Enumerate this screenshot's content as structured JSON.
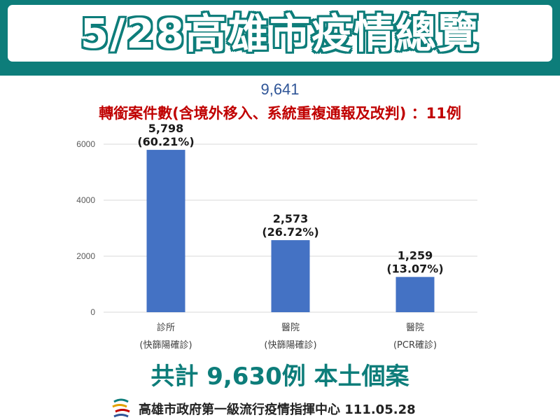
{
  "header": {
    "title": "5/28高雄市疫情總覽",
    "bg_color": "#0d7d7a"
  },
  "total_reference": "9,641",
  "transfer_note": "轉銜案件數(含境外移入、系統重複通報及改判) ：11例",
  "chart_data": {
    "type": "bar",
    "categories": [
      [
        "診所",
        "(快篩陽確診)"
      ],
      [
        "醫院",
        "(快篩陽確診)"
      ],
      [
        "醫院",
        "(PCR確診)"
      ]
    ],
    "values": [
      5798,
      2573,
      1259
    ],
    "data_labels": [
      [
        "5,798",
        "(60.21%)"
      ],
      [
        "2,573",
        "(26.72%)"
      ],
      [
        "1,259",
        "(13.07%)"
      ]
    ],
    "y_ticks": [
      0,
      2000,
      4000,
      6000
    ],
    "ylim": [
      0,
      6400
    ],
    "grid": true,
    "bar_color": "#4472c4",
    "title": "",
    "xlabel": "",
    "ylabel": ""
  },
  "summary": "共計 9,630例 本土個案",
  "footer": {
    "logo_icon": "kaohsiung-city-logo-icon",
    "text": "高雄市政府第一級流行疫情指揮中心 111.05.28"
  }
}
